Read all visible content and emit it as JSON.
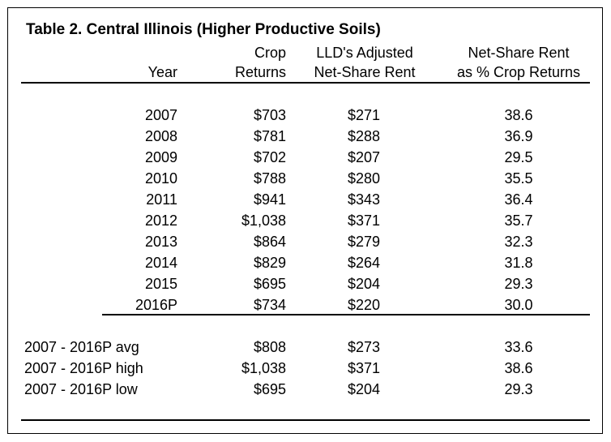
{
  "title": "Table 2.  Central Illinois (Higher Productive Soils)",
  "headers": {
    "year": "Year",
    "crop_line1": "Crop",
    "crop_line2": "Returns",
    "rent_line1": "LLD's Adjusted",
    "rent_line2": "Net-Share Rent",
    "pct_line1": "Net-Share Rent",
    "pct_line2": "as % Crop Returns"
  },
  "rows": [
    {
      "year": "2007",
      "crop": "$703",
      "rent": "$271",
      "pct": "38.6"
    },
    {
      "year": "2008",
      "crop": "$781",
      "rent": "$288",
      "pct": "36.9"
    },
    {
      "year": "2009",
      "crop": "$702",
      "rent": "$207",
      "pct": "29.5"
    },
    {
      "year": "2010",
      "crop": "$788",
      "rent": "$280",
      "pct": "35.5"
    },
    {
      "year": "2011",
      "crop": "$941",
      "rent": "$343",
      "pct": "36.4"
    },
    {
      "year": "2012",
      "crop": "$1,038",
      "rent": "$371",
      "pct": "35.7"
    },
    {
      "year": "2013",
      "crop": "$864",
      "rent": "$279",
      "pct": "32.3"
    },
    {
      "year": "2014",
      "crop": "$829",
      "rent": "$264",
      "pct": "31.8"
    },
    {
      "year": "2015",
      "crop": "$695",
      "rent": "$204",
      "pct": "29.3"
    },
    {
      "year": "2016P",
      "crop": "$734",
      "rent": "$220",
      "pct": "30.0"
    }
  ],
  "summary": [
    {
      "label": "2007 - 2016P avg",
      "crop": "$808",
      "rent": "$273",
      "pct": "33.6"
    },
    {
      "label": "2007 - 2016P high",
      "crop": "$1,038",
      "rent": "$371",
      "pct": "38.6"
    },
    {
      "label": "2007 - 2016P low",
      "crop": "$695",
      "rent": "$204",
      "pct": "29.3"
    }
  ]
}
